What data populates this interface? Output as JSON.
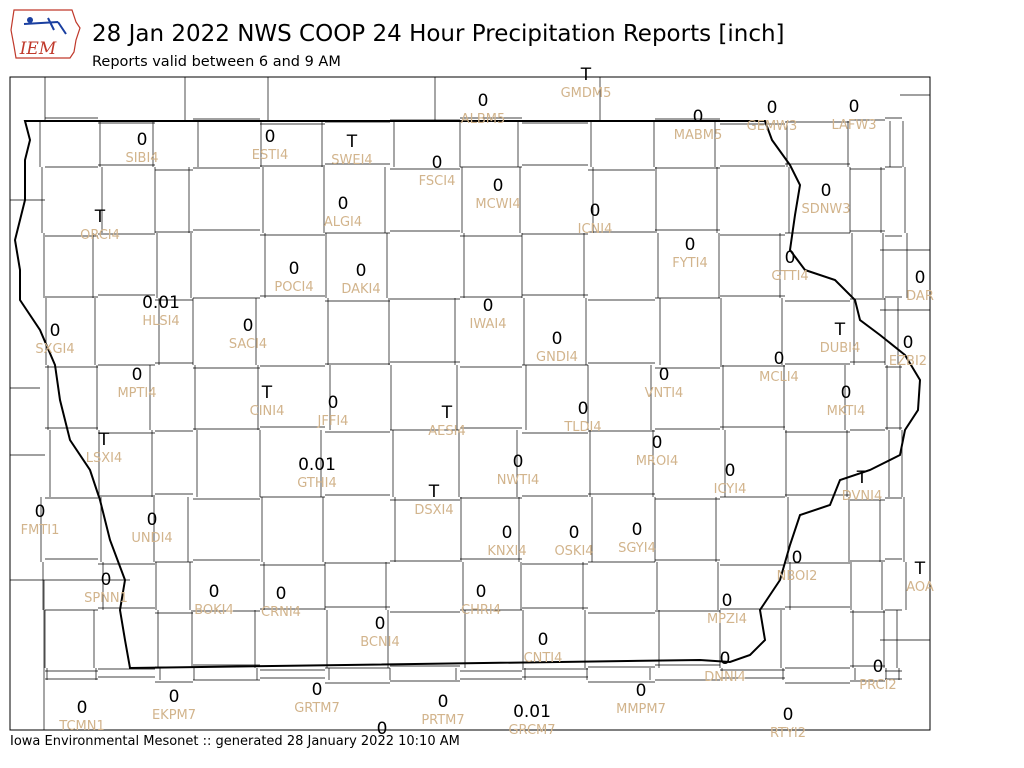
{
  "header": {
    "title": "28 Jan 2022 NWS COOP 24 Hour Precipitation Reports [inch]",
    "subtitle": "Reports valid between 6 and 9 AM",
    "logo": "IEM"
  },
  "stations": [
    {
      "value": "0",
      "name": "ALBM5"
    },
    {
      "value": "T",
      "name": "GMDM5"
    },
    {
      "value": "0",
      "name": "MABM5"
    },
    {
      "value": "0",
      "name": "GEMW3"
    },
    {
      "value": "0",
      "name": "LAFW3"
    },
    {
      "value": "0",
      "name": "SIBI4"
    },
    {
      "value": "0",
      "name": "ESTI4"
    },
    {
      "value": "T",
      "name": "SWEI4"
    },
    {
      "value": "0",
      "name": "FSCI4"
    },
    {
      "value": "0",
      "name": "MCWI4"
    },
    {
      "value": "0",
      "name": "ICNI4"
    },
    {
      "value": "0",
      "name": "SDNW3"
    },
    {
      "value": "T",
      "name": "ORCI4"
    },
    {
      "value": "0",
      "name": "ALGI4"
    },
    {
      "value": "0",
      "name": "FYTI4"
    },
    {
      "value": "0",
      "name": "GTTI4"
    },
    {
      "value": "0",
      "name": "POCI4"
    },
    {
      "value": "0",
      "name": "DAKI4"
    },
    {
      "value": "0",
      "name": "DAR"
    },
    {
      "value": "0.01",
      "name": "HLSI4"
    },
    {
      "value": "0",
      "name": "IWAI4"
    },
    {
      "value": "0",
      "name": "SXGI4"
    },
    {
      "value": "0",
      "name": "SACI4"
    },
    {
      "value": "0",
      "name": "GNDI4"
    },
    {
      "value": "T",
      "name": "DUBI4"
    },
    {
      "value": "0",
      "name": "EZBI2"
    },
    {
      "value": "0",
      "name": "MPTI4"
    },
    {
      "value": "T",
      "name": "CINI4"
    },
    {
      "value": "0",
      "name": "JFFI4"
    },
    {
      "value": "T",
      "name": "AESI4"
    },
    {
      "value": "0",
      "name": "VNTI4"
    },
    {
      "value": "0",
      "name": "MCLI4"
    },
    {
      "value": "0",
      "name": "MKTI4"
    },
    {
      "value": "0",
      "name": "TLDI4"
    },
    {
      "value": "T",
      "name": "LSXI4"
    },
    {
      "value": "0.01",
      "name": "GTHI4"
    },
    {
      "value": "0",
      "name": "NWTI4"
    },
    {
      "value": "0",
      "name": "MROI4"
    },
    {
      "value": "0",
      "name": "ICYI4"
    },
    {
      "value": "T",
      "name": "DVNI4"
    },
    {
      "value": "T",
      "name": "DSXI4"
    },
    {
      "value": "0",
      "name": "FMTI1"
    },
    {
      "value": "0",
      "name": "UNDI4"
    },
    {
      "value": "0",
      "name": "KNXI4"
    },
    {
      "value": "0",
      "name": "OSKI4"
    },
    {
      "value": "0",
      "name": "SGYI4"
    },
    {
      "value": "0",
      "name": "NBOI2"
    },
    {
      "value": "T",
      "name": "AOA"
    },
    {
      "value": "0",
      "name": "SPNN1"
    },
    {
      "value": "0",
      "name": "BOKI4"
    },
    {
      "value": "0",
      "name": "CRNI4"
    },
    {
      "value": "0",
      "name": "CHRI4"
    },
    {
      "value": "0",
      "name": "MPZI4"
    },
    {
      "value": "0",
      "name": "BCNI4"
    },
    {
      "value": "0",
      "name": "CNTI4"
    },
    {
      "value": "0",
      "name": "DNNI4"
    },
    {
      "value": "0",
      "name": "PRCI2"
    },
    {
      "value": "0",
      "name": "TCMN1"
    },
    {
      "value": "0",
      "name": "EKPM7"
    },
    {
      "value": "0",
      "name": "GRTM7"
    },
    {
      "value": "0",
      "name": "PRTM7"
    },
    {
      "value": "0.01",
      "name": "GRCM7"
    },
    {
      "value": "0",
      "name": "MMPM7"
    },
    {
      "value": "0",
      "name": "RTYI2"
    },
    {
      "value": "0"
    }
  ],
  "footer": "Iowa Environmental Mesonet :: generated 28 January 2022 10:10 AM"
}
